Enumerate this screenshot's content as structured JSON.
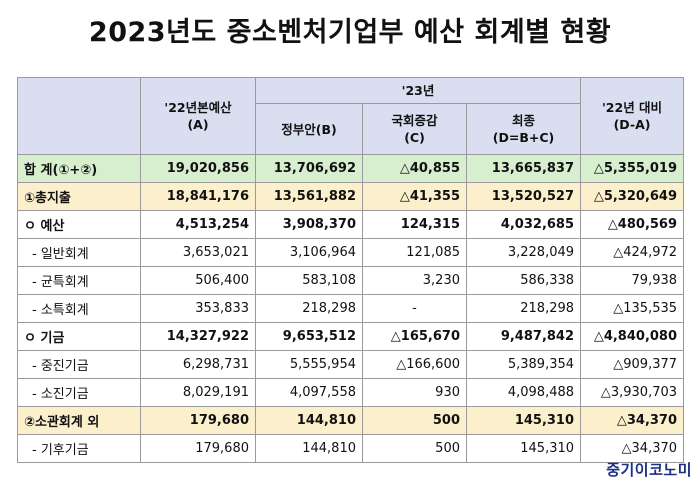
{
  "title": "2023년도 중소벤처기업부 예산 회계별 현황",
  "headers": {
    "prev": "'22년본예산",
    "prev_code": "(A)",
    "year23": "'23년",
    "govt": "정부안(B)",
    "assembly": "국회증감",
    "assembly_code": "(C)",
    "final": "최종",
    "final_code": "(D=B+C)",
    "compare": "'22년 대비",
    "compare_code": "(D-A)"
  },
  "rows": [
    {
      "label": "합 계(①+②)",
      "a": "19,020,856",
      "b": "13,706,692",
      "c": "△40,855",
      "d": "13,665,837",
      "e": "△5,355,019"
    },
    {
      "label": "①총지출",
      "a": "18,841,176",
      "b": "13,561,882",
      "c": "△41,355",
      "d": "13,520,527",
      "e": "△5,320,649"
    },
    {
      "label": "ㅇ 예산",
      "a": "4,513,254",
      "b": "3,908,370",
      "c": "124,315",
      "d": "4,032,685",
      "e": "△480,569"
    },
    {
      "label": "- 일반회계",
      "a": "3,653,021",
      "b": "3,106,964",
      "c": "121,085",
      "d": "3,228,049",
      "e": "△424,972"
    },
    {
      "label": "- 균특회계",
      "a": "506,400",
      "b": "583,108",
      "c": "3,230",
      "d": "586,338",
      "e": "79,938"
    },
    {
      "label": "- 소특회계",
      "a": "353,833",
      "b": "218,298",
      "c": "-",
      "d": "218,298",
      "e": "△135,535"
    },
    {
      "label": "ㅇ 기금",
      "a": "14,327,922",
      "b": "9,653,512",
      "c": "△165,670",
      "d": "9,487,842",
      "e": "△4,840,080"
    },
    {
      "label": "- 중진기금",
      "a": "6,298,731",
      "b": "5,555,954",
      "c": "△166,600",
      "d": "5,389,354",
      "e": "△909,377"
    },
    {
      "label": "- 소진기금",
      "a": "8,029,191",
      "b": "4,097,558",
      "c": "930",
      "d": "4,098,488",
      "e": "△3,930,703"
    },
    {
      "label": "②소관회계 외",
      "a": "179,680",
      "b": "144,810",
      "c": "500",
      "d": "145,310",
      "e": "△34,370"
    },
    {
      "label": "- 기후기금",
      "a": "179,680",
      "b": "144,810",
      "c": "500",
      "d": "145,310",
      "e": "△34,370"
    }
  ],
  "logo": "중기이코노미"
}
